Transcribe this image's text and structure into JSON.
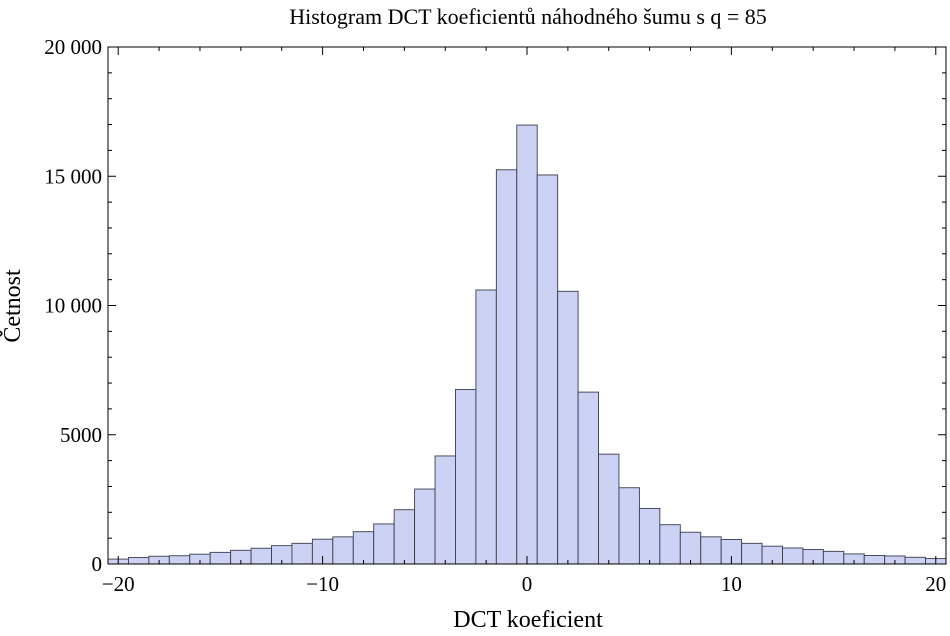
{
  "chart_data": {
    "type": "bar",
    "title": "Histogram DCT koeficientů náhodného šumu s q = 85",
    "xlabel": "DCT koeficient",
    "ylabel": "Četnost",
    "xlim": [
      -20.5,
      20.5
    ],
    "ylim": [
      0,
      20000
    ],
    "bin_width": 1,
    "bin_centers": [
      -20,
      -19,
      -18,
      -17,
      -16,
      -15,
      -14,
      -13,
      -12,
      -11,
      -10,
      -9,
      -8,
      -7,
      -6,
      -5,
      -4,
      -3,
      -2,
      -1,
      0,
      1,
      2,
      3,
      4,
      5,
      6,
      7,
      8,
      9,
      10,
      11,
      12,
      13,
      14,
      15,
      16,
      17,
      18,
      19,
      20
    ],
    "values": [
      190,
      250,
      300,
      320,
      380,
      450,
      530,
      610,
      710,
      800,
      960,
      1050,
      1250,
      1550,
      2100,
      2900,
      4180,
      6750,
      10600,
      15250,
      16980,
      15050,
      10550,
      6650,
      4250,
      2950,
      2150,
      1520,
      1230,
      1050,
      950,
      800,
      690,
      620,
      560,
      490,
      390,
      330,
      310,
      260,
      210
    ],
    "x_ticks": [
      -20,
      -10,
      0,
      10,
      20
    ],
    "x_tick_labels": [
      "−20",
      "−10",
      "0",
      "10",
      "20"
    ],
    "y_ticks": [
      0,
      5000,
      10000,
      15000,
      20000
    ],
    "y_tick_labels": [
      "0",
      "5000",
      "10 000",
      "15 000",
      "20 000"
    ],
    "grid": false,
    "bar_color": "#ccd2f4",
    "bar_edge_color": "#3c3c4e"
  }
}
